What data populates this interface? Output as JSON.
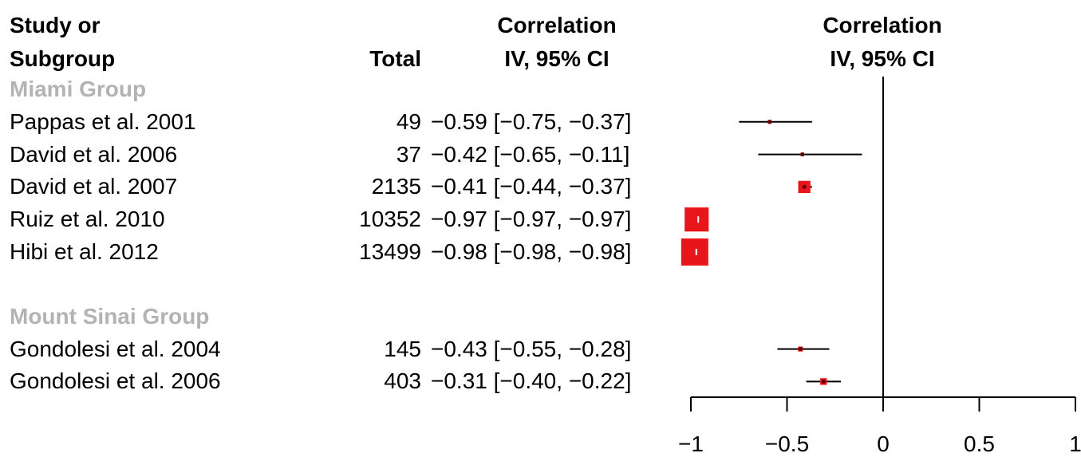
{
  "header": {
    "study_line1": "Study or",
    "study_line2": "Subgroup",
    "total": "Total",
    "corr_line1": "Correlation",
    "corr_line2": "IV, 95% CI",
    "plot_line1": "Correlation",
    "plot_line2": "IV, 95% CI"
  },
  "chart_data": {
    "type": "forest",
    "xlim": [
      -1,
      1
    ],
    "x_ticks": [
      -1,
      -0.5,
      0,
      0.5,
      1
    ],
    "x_tick_labels": [
      "−1",
      "−0.5",
      "0",
      "0.5",
      "1"
    ],
    "reference_line": 0,
    "groups": [
      {
        "name": "Miami Group",
        "studies": [
          {
            "study": "Pappas et al. 2001",
            "total": "49",
            "ci_text": "−0.59 [−0.75, −0.37]",
            "estimate": -0.59,
            "lower": -0.75,
            "upper": -0.37
          },
          {
            "study": "David et al. 2006",
            "total": "37",
            "ci_text": "−0.42 [−0.65, −0.11]",
            "estimate": -0.42,
            "lower": -0.65,
            "upper": -0.11
          },
          {
            "study": "David et al. 2007",
            "total": "2135",
            "ci_text": "−0.41 [−0.44, −0.37]",
            "estimate": -0.41,
            "lower": -0.44,
            "upper": -0.37
          },
          {
            "study": "Ruiz et al. 2010",
            "total": "10352",
            "ci_text": "−0.97 [−0.97, −0.97]",
            "estimate": -0.97,
            "lower": -0.97,
            "upper": -0.97
          },
          {
            "study": "Hibi et al. 2012",
            "total": "13499",
            "ci_text": "−0.98 [−0.98, −0.98]",
            "estimate": -0.98,
            "lower": -0.98,
            "upper": -0.98
          }
        ]
      },
      {
        "name": "Mount Sinai Group",
        "studies": [
          {
            "study": "Gondolesi et al. 2004",
            "total": "145",
            "ci_text": "−0.43 [−0.55, −0.28]",
            "estimate": -0.43,
            "lower": -0.55,
            "upper": -0.28
          },
          {
            "study": "Gondolesi et al. 2006",
            "total": "403",
            "ci_text": "−0.31 [−0.40, −0.22]",
            "estimate": -0.31,
            "lower": -0.4,
            "upper": -0.22
          }
        ]
      }
    ],
    "colors": {
      "box": "#e8161b",
      "line": "#000000",
      "group_label": "#b3b3b3"
    }
  }
}
